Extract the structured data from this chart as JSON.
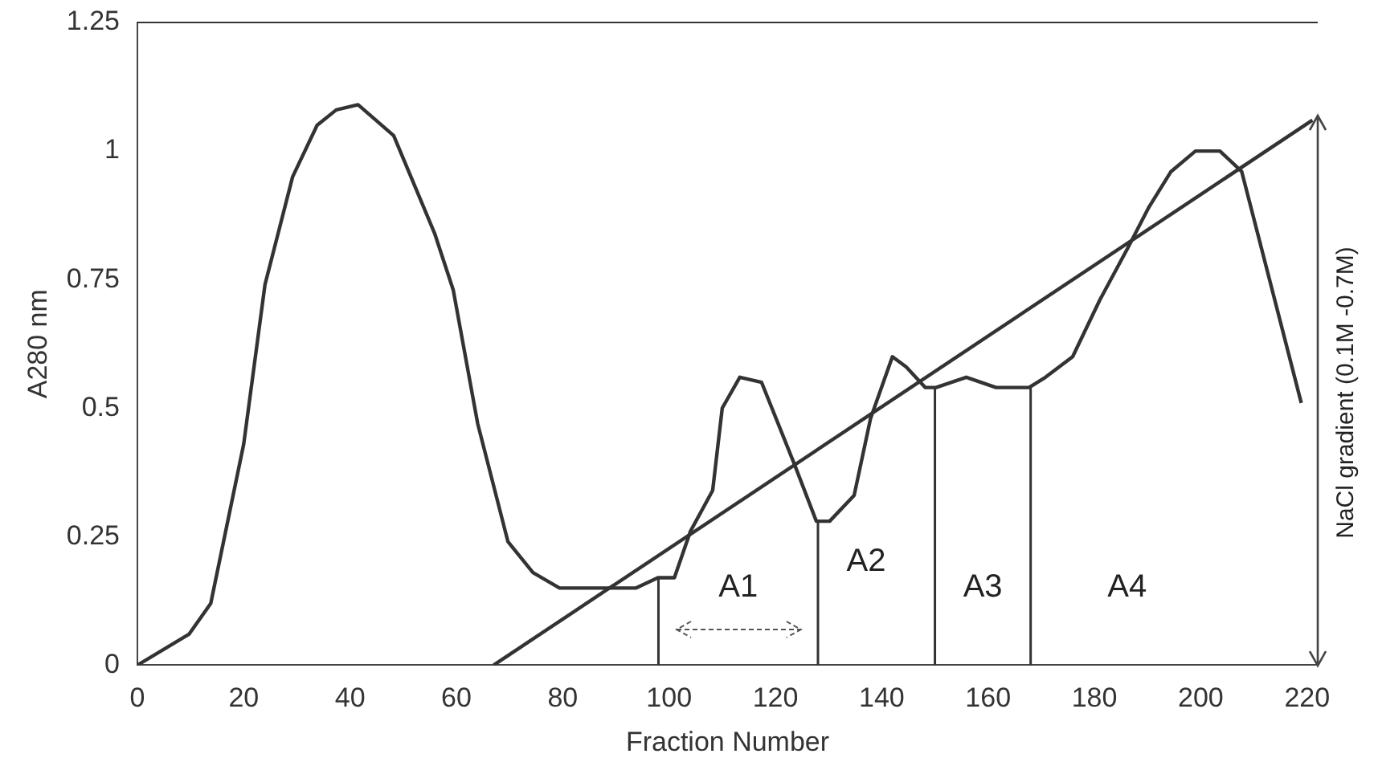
{
  "chart_data": {
    "type": "line",
    "xlabel": "Fraction Number",
    "ylabel": "A280 nm",
    "xlim": [
      0,
      222
    ],
    "xticks": [
      0,
      20,
      40,
      60,
      80,
      100,
      120,
      140,
      160,
      180,
      200,
      220
    ],
    "ylim": [
      0,
      1.25
    ],
    "yticks": [
      0,
      0.25,
      0.5,
      0.75,
      1,
      1.25
    ],
    "grid": false,
    "legend": false,
    "marker": "none",
    "line_style": "solid",
    "series": [
      {
        "color": "#333333",
        "x": [
          0,
          9.7,
          13.8,
          20,
          24,
          29.2,
          33.8,
          37.4,
          41.5,
          48.2,
          55.9,
          59.4,
          64,
          69.7,
          74.4,
          79.4,
          93.8,
          97.9,
          101,
          104,
          108.2,
          110,
          113.3,
          117.4,
          123.6,
          127.7,
          130.2,
          134.8,
          137.9,
          142,
          144.6,
          148.2,
          150.2,
          155.9,
          161.5,
          167.7,
          170.8,
          175.9,
          181,
          186.2,
          190.2,
          194.4,
          199,
          203.6,
          207.7,
          218.9
        ],
        "values": [
          0,
          0.06,
          0.12,
          0.43,
          0.74,
          0.95,
          1.05,
          1.08,
          1.09,
          1.03,
          0.84,
          0.73,
          0.47,
          0.24,
          0.18,
          0.15,
          0.15,
          0.17,
          0.17,
          0.26,
          0.34,
          0.5,
          0.56,
          0.55,
          0.39,
          0.28,
          0.28,
          0.33,
          0.48,
          0.6,
          0.58,
          0.54,
          0.54,
          0.56,
          0.54,
          0.54,
          0.56,
          0.6,
          0.71,
          0.81,
          0.89,
          0.96,
          1,
          1,
          0.96,
          0.51
        ]
      },
      {
        "type": "line",
        "color": "#333333",
        "x": [
          67,
          221
        ],
        "values": [
          0,
          1.06
        ]
      }
    ],
    "ref_lines": [
      {
        "axis": "x",
        "value": 98
      },
      {
        "axis": "x",
        "value": 128
      },
      {
        "axis": "x",
        "value": 150
      },
      {
        "axis": "x",
        "value": 168
      }
    ],
    "annotations": [
      "A1",
      "A2",
      "A3",
      "A4",
      "NaCl gradient (0.1M -0.7M)"
    ]
  }
}
